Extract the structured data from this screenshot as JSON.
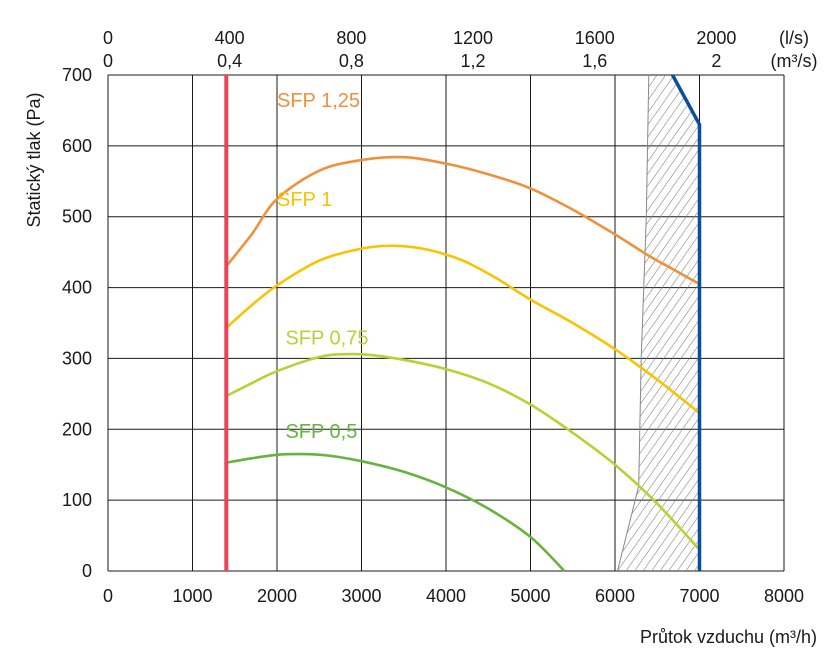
{
  "chart_data": {
    "type": "line",
    "xlabel": "Průtok vzduchu (m³/h)",
    "ylabel": "Statický tlak (Pa)",
    "xlim": [
      0,
      8000
    ],
    "ylim": [
      0,
      700
    ],
    "x_ticks": [
      0,
      1000,
      2000,
      3000,
      4000,
      5000,
      6000,
      7000,
      8000
    ],
    "x_tick_labels": [
      "0",
      "1000",
      "2000",
      "3000",
      "4000",
      "5000",
      "6000",
      "7000",
      "8000"
    ],
    "y_ticks": [
      0,
      100,
      200,
      300,
      400,
      500,
      600,
      700
    ],
    "y_tick_labels": [
      "0",
      "100",
      "200",
      "300",
      "400",
      "500",
      "600",
      "700"
    ],
    "top_axis": {
      "unit_ls": "(l/s)",
      "unit_m3s": "(m³/s)",
      "ticks": [
        {
          "x": 0,
          "ls": "0",
          "m3s": "0"
        },
        {
          "x": 1440,
          "ls": "400",
          "m3s": "0,4"
        },
        {
          "x": 2880,
          "ls": "800",
          "m3s": "0,8"
        },
        {
          "x": 4320,
          "ls": "1200",
          "m3s": "1,2"
        },
        {
          "x": 5760,
          "ls": "1600",
          "m3s": "1,6"
        },
        {
          "x": 7200,
          "ls": "2000",
          "m3s": "2"
        }
      ]
    },
    "grid": true,
    "series": [
      {
        "name": "SFP 1,25",
        "color": "#f0913a",
        "label_at": [
          2000,
          655
        ],
        "points": [
          [
            1400,
            430
          ],
          [
            1700,
            475
          ],
          [
            2000,
            525
          ],
          [
            2500,
            565
          ],
          [
            3000,
            580
          ],
          [
            3500,
            584
          ],
          [
            4000,
            575
          ],
          [
            4500,
            560
          ],
          [
            5000,
            540
          ],
          [
            5500,
            510
          ],
          [
            6000,
            475
          ],
          [
            6400,
            445
          ],
          [
            6700,
            425
          ],
          [
            7000,
            405
          ]
        ]
      },
      {
        "name": "SFP 1",
        "color": "#f8c300",
        "label_at": [
          2000,
          515
        ],
        "points": [
          [
            1400,
            343
          ],
          [
            1700,
            375
          ],
          [
            2000,
            403
          ],
          [
            2500,
            438
          ],
          [
            3000,
            455
          ],
          [
            3400,
            459
          ],
          [
            3800,
            453
          ],
          [
            4200,
            438
          ],
          [
            4600,
            413
          ],
          [
            5000,
            383
          ],
          [
            5500,
            350
          ],
          [
            6000,
            313
          ],
          [
            6500,
            270
          ],
          [
            7000,
            223
          ]
        ]
      },
      {
        "name": "SFP 0,75",
        "color": "#b5d334",
        "label_at": [
          2100,
          320
        ],
        "points": [
          [
            1400,
            247
          ],
          [
            1700,
            265
          ],
          [
            2000,
            282
          ],
          [
            2500,
            302
          ],
          [
            2800,
            306
          ],
          [
            3100,
            305
          ],
          [
            3500,
            298
          ],
          [
            4000,
            285
          ],
          [
            4500,
            265
          ],
          [
            5000,
            235
          ],
          [
            5500,
            195
          ],
          [
            6000,
            150
          ],
          [
            6500,
            95
          ],
          [
            7000,
            30
          ]
        ]
      },
      {
        "name": "SFP 0,5",
        "color": "#66b33e",
        "label_at": [
          2100,
          188
        ],
        "points": [
          [
            1400,
            153
          ],
          [
            1700,
            159
          ],
          [
            2000,
            164
          ],
          [
            2300,
            165
          ],
          [
            2600,
            163
          ],
          [
            3000,
            155
          ],
          [
            3500,
            140
          ],
          [
            4000,
            118
          ],
          [
            4500,
            88
          ],
          [
            5000,
            48
          ],
          [
            5400,
            0
          ]
        ]
      }
    ],
    "limits": [
      {
        "name": "min-flow",
        "color": "#e8455a",
        "x": 1400,
        "y_range": [
          0,
          700
        ]
      },
      {
        "name": "max-flow",
        "color": "#0a4f9e",
        "points": [
          [
            6680,
            700
          ],
          [
            7000,
            630
          ],
          [
            7000,
            0
          ]
        ]
      }
    ],
    "hatched_region": {
      "points": [
        [
          6400,
          700
        ],
        [
          6370,
          500
        ],
        [
          6310,
          300
        ],
        [
          6280,
          120
        ],
        [
          6030,
          0
        ],
        [
          7000,
          0
        ],
        [
          7000,
          630
        ],
        [
          6680,
          700
        ]
      ]
    }
  }
}
